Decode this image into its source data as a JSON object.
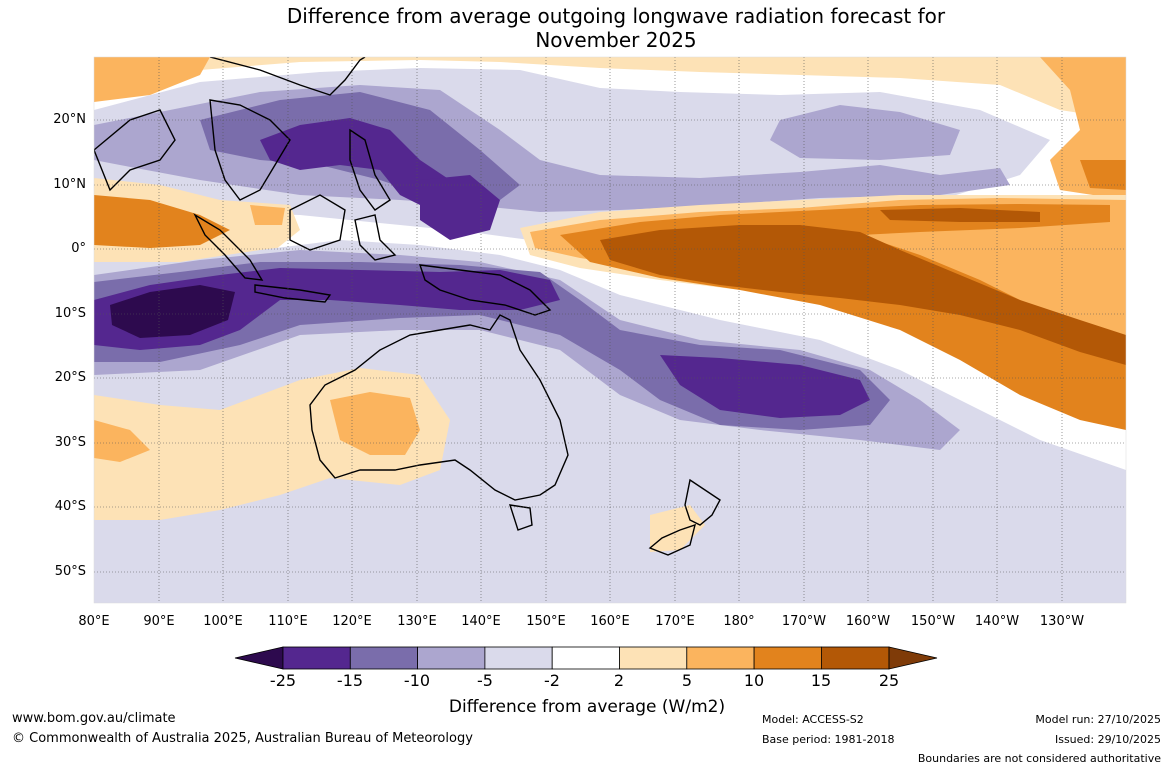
{
  "title_line1": "Difference from average outgoing longwave radiation forecast for",
  "title_line2": "November 2025",
  "lat_labels": [
    "20°N",
    "10°N",
    "0°",
    "10°S",
    "20°S",
    "30°S",
    "40°S",
    "50°S"
  ],
  "lon_labels": [
    "80°E",
    "90°E",
    "100°E",
    "110°E",
    "120°E",
    "130°E",
    "140°E",
    "150°E",
    "160°E",
    "170°E",
    "180°",
    "170°W",
    "160°W",
    "150°W",
    "140°W",
    "130°W"
  ],
  "colorbar": {
    "ticks": [
      "-25",
      "-15",
      "-10",
      "-5",
      "-2",
      "2",
      "5",
      "10",
      "15",
      "25"
    ],
    "colors": [
      "#2d0a4e",
      "#54278f",
      "#7a6dab",
      "#aca6cf",
      "#dadaeb",
      "#ffffff",
      "#fde2b6",
      "#fbb45e",
      "#e2831d",
      "#b35806",
      "#7f3b08"
    ],
    "label": "Difference from average (W/m2)"
  },
  "footer": {
    "url": "www.bom.gov.au/climate",
    "copyright": "© Commonwealth of Australia 2025, Australian Bureau of Meteorology",
    "model": "Model: ACCESS-S2",
    "base_period": "Base period: 1981-2018",
    "model_run": "Model run: 27/10/2025",
    "issued": "Issued: 29/10/2025",
    "disclaimer": "Boundaries are not considered authoritative"
  }
}
